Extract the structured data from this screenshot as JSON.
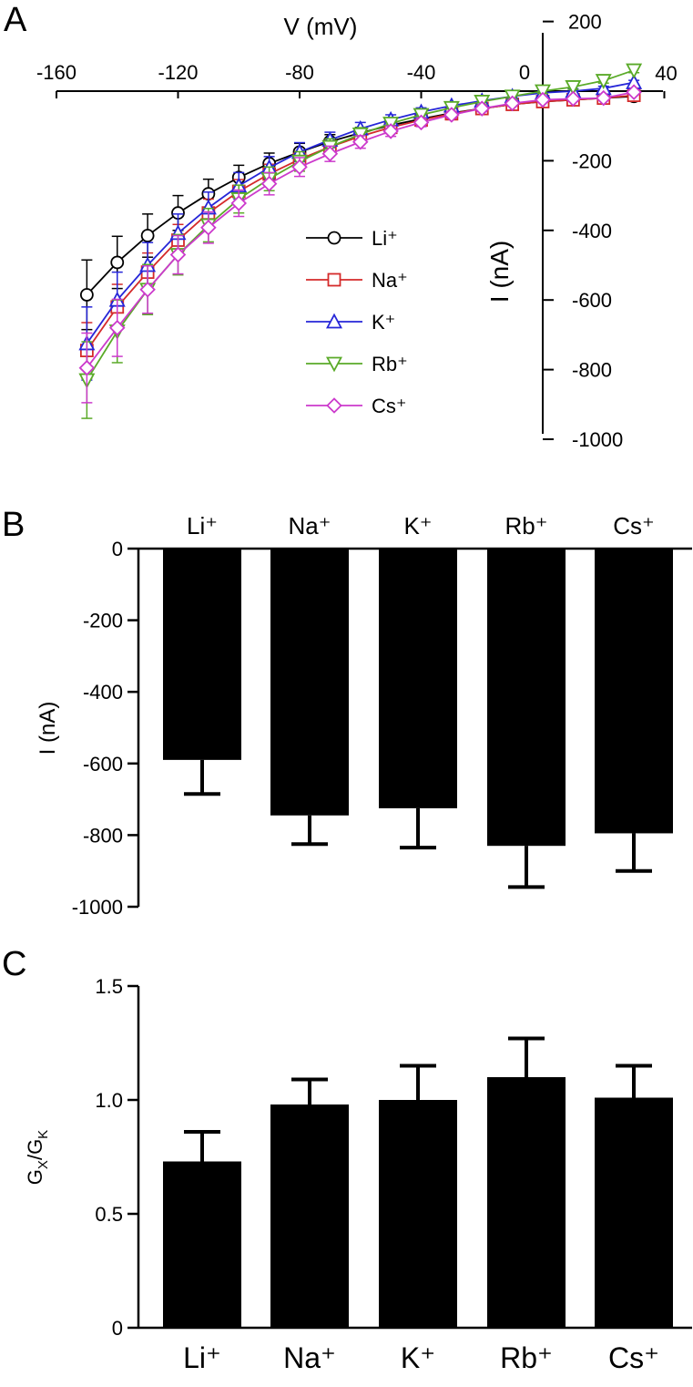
{
  "chart_data": [
    {
      "panel_label": "A",
      "type": "line",
      "xlabel": "V (mV)",
      "ylabel": "I (nA)",
      "xlim": [
        -160,
        40
      ],
      "ylim": [
        -1000,
        200
      ],
      "x_ticks": [
        -160,
        -120,
        -80,
        -40,
        0,
        40
      ],
      "y_ticks": [
        200,
        -200,
        -400,
        -600,
        -800,
        -1000
      ],
      "x": [
        -150,
        -140,
        -130,
        -120,
        -110,
        -100,
        -90,
        -80,
        -70,
        -60,
        -50,
        -40,
        -30,
        -20,
        -10,
        0,
        10,
        20,
        30
      ],
      "series": [
        {
          "name": "Li⁺",
          "marker": "circle",
          "color": "#000000",
          "values": [
            -585,
            -492,
            -415,
            -350,
            -295,
            -248,
            -208,
            -175,
            -145,
            -120,
            -98,
            -80,
            -63,
            -50,
            -38,
            -30,
            -25,
            -20,
            -15
          ],
          "errors": [
            100,
            75,
            62,
            50,
            42,
            35,
            30,
            25,
            20,
            16,
            14,
            12,
            10,
            9,
            8,
            7,
            7,
            6,
            6
          ]
        },
        {
          "name": "Na⁺",
          "marker": "square",
          "color": "#d42a2a",
          "values": [
            -745,
            -620,
            -520,
            -428,
            -350,
            -288,
            -238,
            -196,
            -160,
            -130,
            -104,
            -83,
            -65,
            -50,
            -38,
            -30,
            -25,
            -20,
            -12
          ],
          "errors": [
            80,
            65,
            55,
            45,
            40,
            34,
            28,
            23,
            19,
            16,
            13,
            11,
            9,
            8,
            7,
            7,
            6,
            6,
            6
          ]
        },
        {
          "name": "K⁺",
          "marker": "triangle-up",
          "color": "#2626d8",
          "values": [
            -725,
            -600,
            -500,
            -408,
            -335,
            -272,
            -220,
            -175,
            -140,
            -108,
            -82,
            -60,
            -42,
            -28,
            -15,
            -5,
            0,
            8,
            25
          ],
          "errors": [
            105,
            80,
            65,
            55,
            45,
            38,
            32,
            27,
            22,
            18,
            14,
            12,
            10,
            9,
            8,
            7,
            7,
            6,
            6
          ]
        },
        {
          "name": "Rb⁺",
          "marker": "triangle-down",
          "color": "#5aaa28",
          "values": [
            -830,
            -690,
            -570,
            -470,
            -385,
            -310,
            -252,
            -202,
            -160,
            -124,
            -93,
            -68,
            -48,
            -30,
            -15,
            0,
            12,
            30,
            60
          ],
          "errors": [
            110,
            90,
            72,
            58,
            48,
            40,
            34,
            28,
            23,
            19,
            15,
            12,
            10,
            9,
            8,
            7,
            7,
            7,
            7
          ]
        },
        {
          "name": "Cs⁺",
          "marker": "diamond",
          "color": "#cc3acc",
          "values": [
            -795,
            -680,
            -570,
            -470,
            -392,
            -322,
            -266,
            -218,
            -180,
            -146,
            -115,
            -90,
            -68,
            -50,
            -35,
            -25,
            -22,
            -20,
            -3
          ],
          "errors": [
            100,
            82,
            68,
            55,
            45,
            38,
            32,
            27,
            22,
            18,
            15,
            12,
            10,
            9,
            8,
            7,
            7,
            6,
            6
          ]
        }
      ],
      "legend": "center"
    },
    {
      "panel_label": "B",
      "type": "bar",
      "ylabel": "I (nA)",
      "ylim": [
        -1000,
        0
      ],
      "y_ticks": [
        0,
        -200,
        -400,
        -600,
        -800,
        -1000
      ],
      "categories": [
        "Li⁺",
        "Na⁺",
        "K⁺",
        "Rb⁺",
        "Cs⁺"
      ],
      "values": [
        -590,
        -745,
        -725,
        -830,
        -795
      ],
      "errors": [
        95,
        80,
        110,
        115,
        105
      ]
    },
    {
      "panel_label": "C",
      "type": "bar",
      "ylabel_main": "G",
      "ylabel_sub1": "X",
      "ylabel_sep": "/G",
      "ylabel_sub2": "K",
      "ylim": [
        0,
        1.5
      ],
      "y_ticks": [
        "1.5",
        "1.0",
        "0.5",
        "0"
      ],
      "y_tick_values": [
        1.5,
        1.0,
        0.5,
        0
      ],
      "categories": [
        "Li⁺",
        "Na⁺",
        "K⁺",
        "Rb⁺",
        "Cs⁺"
      ],
      "values": [
        0.73,
        0.98,
        1.0,
        1.1,
        1.01
      ],
      "errors": [
        0.13,
        0.11,
        0.15,
        0.17,
        0.14
      ]
    }
  ]
}
